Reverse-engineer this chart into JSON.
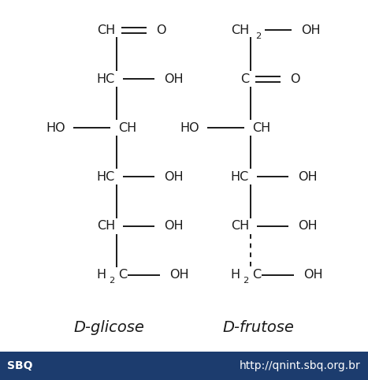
{
  "background_color": "#ffffff",
  "footer_bg_color": "#1c3c6e",
  "footer_text_left": "SBQ",
  "footer_text_right": "http://qnint.sbq.org.br",
  "footer_text_color": "#ffffff",
  "footer_font_size": 10,
  "label_left": "D-glicose",
  "label_right": "D-frutose",
  "label_font_size": 14,
  "struct_color": "#1a1a1a",
  "font_size_struct": 11.5,
  "fig_width": 4.67,
  "fig_height": 4.82,
  "dpi": 100
}
